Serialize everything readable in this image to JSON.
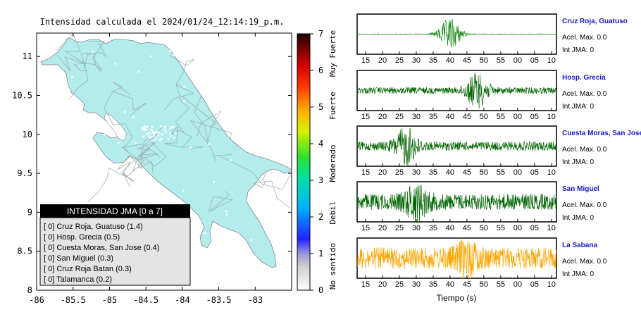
{
  "map": {
    "title": "Intensidad calculada el 2024/01/24_12:14:19_p.m.",
    "x_ticks": [
      "-86",
      "-85.5",
      "-85",
      "-84.5",
      "-84",
      "-83.5",
      "-83"
    ],
    "y_ticks": [
      "11",
      "10.5",
      "10",
      "9.5",
      "9",
      "8.5",
      "8"
    ],
    "land_color": "#b3ecec"
  },
  "legend": {
    "header": "INTENSIDAD JMA [0 a 7]",
    "entries": [
      "[ 0]  Cruz Roja, Guatuso (1.4)",
      "[ 0]  Hosp. Grecia (0.5)",
      "[ 0]  Cuesta Moras, San Jose (0.4)",
      "[ 0]  San Miguel (0.3)",
      "[ 0]  Cruz Roja Batan (0.3)",
      "[ 0]  Talamanca (0.2)"
    ]
  },
  "colorbar": {
    "ticks": [
      "0",
      "1",
      "2",
      "3",
      "4",
      "5",
      "6",
      "7"
    ],
    "labels": [
      "No sentido",
      "Debil",
      "Moderado",
      "Fuerte",
      "Muy Fuerte"
    ]
  },
  "waveforms": {
    "x_ticks": [
      "15",
      "20",
      "25",
      "30",
      "35",
      "40",
      "45",
      "50",
      "55",
      "00",
      "05",
      "10"
    ],
    "xlabel": "Tiempo (s)"
  },
  "chart_data": {
    "type": "line",
    "x_ticks": [
      "15",
      "20",
      "25",
      "30",
      "35",
      "40",
      "45",
      "50",
      "55",
      "00",
      "05",
      "10"
    ],
    "xlabel": "Tiempo (s)",
    "series": [
      {
        "name": "Cruz Roja, Guatuso",
        "accel_label": "Acel. Max. 0.0",
        "jma_label": "Int JMA: 0",
        "color": "#1a8a1a",
        "peak_time": 40,
        "amplitude": 0.9,
        "noise": 0.02
      },
      {
        "name": "Hosp. Grecia",
        "accel_label": "Acel. Max. 0.0",
        "jma_label": "Int JMA: 0",
        "color": "#006400",
        "peak_time": 48,
        "amplitude": 0.9,
        "noise": 0.18
      },
      {
        "name": "Cuesta Moras, San Jose",
        "accel_label": "Acel. Max. 0.0",
        "jma_label": "Int JMA: 0",
        "color": "#006400",
        "peak_time": 27,
        "amplitude": 0.9,
        "noise": 0.25
      },
      {
        "name": "San Miguel",
        "accel_label": "Acel. Max. 0.0",
        "jma_label": "Int JMA: 0",
        "color": "#006400",
        "peak_time": 30,
        "amplitude": 0.8,
        "noise": 0.45
      },
      {
        "name": "La Sabana",
        "accel_label": "Acel. Max. 0.0",
        "jma_label": "Int JMA: 0",
        "color": "#ffa500",
        "peak_time": 45,
        "amplitude": 0.7,
        "noise": 0.6
      }
    ]
  }
}
